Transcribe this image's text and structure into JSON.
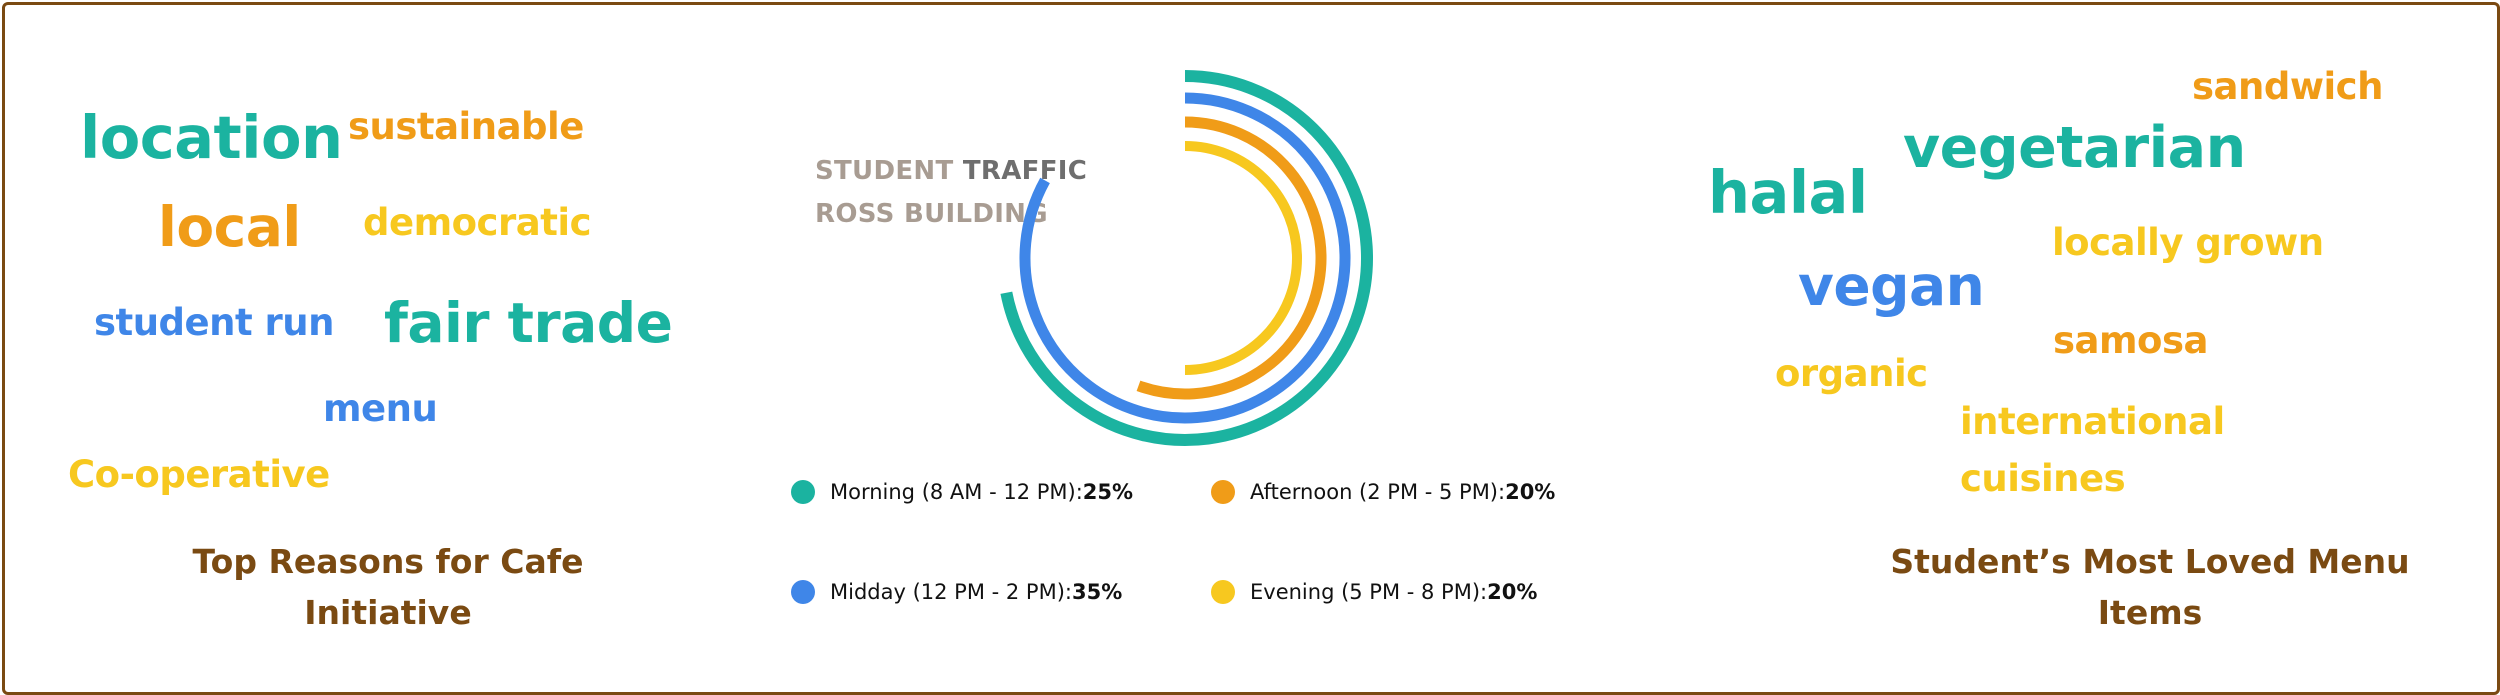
{
  "reasons": {
    "caption_line1": "Top Reasons for Cafe",
    "caption_line2": "Initiative",
    "words": [
      "location",
      "sustainable",
      "local",
      "democratic",
      "student run",
      "fair trade",
      "menu",
      "Co-operative"
    ]
  },
  "menu": {
    "caption_line1": "Student’s Most Loved Menu",
    "caption_line2": "Items",
    "words": [
      "sandwich",
      "vegetarian",
      "halal",
      "locally grown",
      "vegan",
      "samosa",
      "organic",
      "international",
      "cuisines"
    ]
  },
  "chart_data": {
    "type": "radial-bar",
    "title_part1": "STUDENT",
    "title_part2": "TRAFFIC",
    "subtitle": "ROSS BUILDING",
    "series": [
      {
        "name": "Morning (8 AM - 12 PM):",
        "value_label": "25%",
        "value": 25,
        "color": "#1bb3a0"
      },
      {
        "name": "Midday (12 PM - 2 PM):",
        "value_label": "35%",
        "value": 35,
        "color": "#3f86e8"
      },
      {
        "name": "Afternoon (2 PM - 5 PM):",
        "value_label": "20%",
        "value": 20,
        "color": "#f09c18"
      },
      {
        "name": "Evening (5 PM - 8 PM):",
        "value_label": "20%",
        "value": 20,
        "color": "#f7c81f"
      }
    ]
  },
  "colors": {
    "teal": "#1bb3a0",
    "blue": "#3f86e8",
    "orange": "#f09c18",
    "yellow": "#f7c81f",
    "brown": "#7a4a12",
    "title_gray": "#a89c92",
    "title_dark": "#6e6e6e"
  }
}
